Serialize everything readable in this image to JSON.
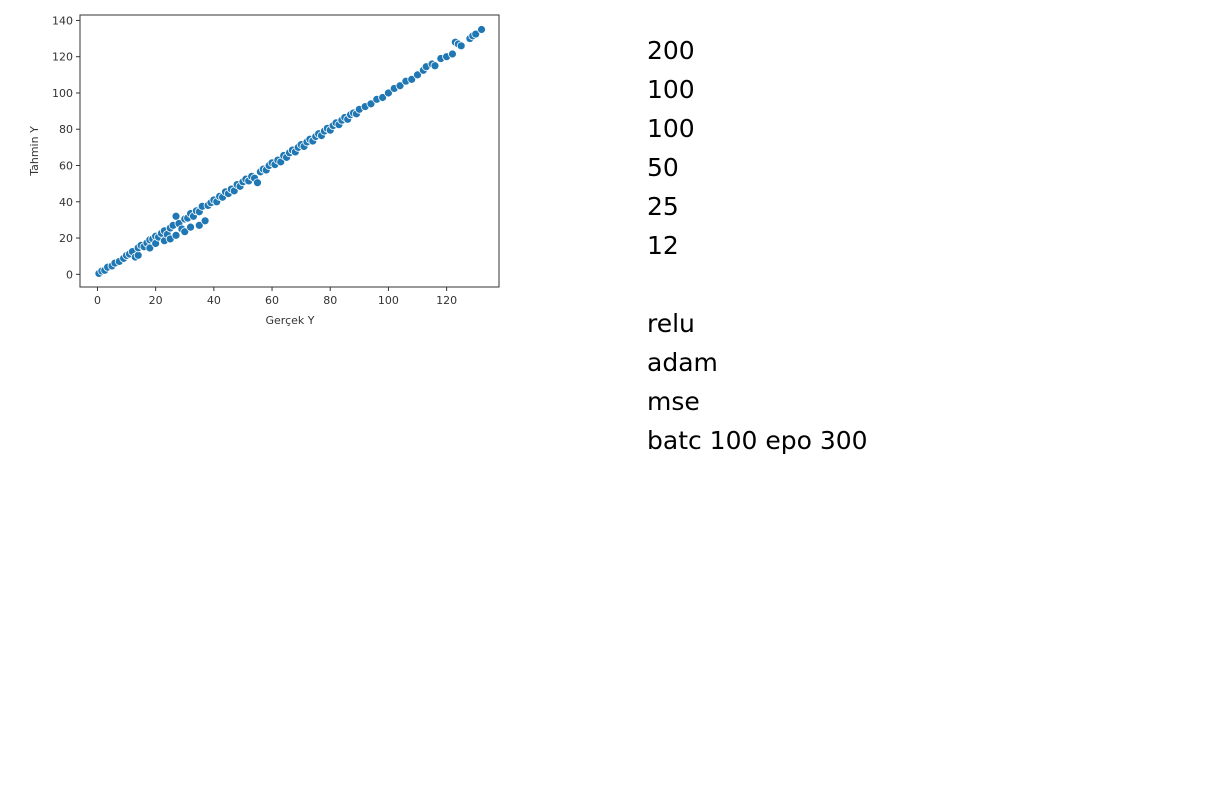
{
  "chart_data": {
    "type": "scatter",
    "title": "",
    "xlabel": "Gerçek Y",
    "ylabel": "Tahmin Y",
    "xlim": [
      -6,
      138
    ],
    "ylim": [
      -7,
      143
    ],
    "xticks": [
      0,
      20,
      40,
      60,
      80,
      100,
      120
    ],
    "yticks": [
      0,
      20,
      40,
      60,
      80,
      100,
      120,
      140
    ],
    "grid": false,
    "color": "#1f77b4",
    "edge_color": "#ffffff",
    "series": [
      {
        "values": [
          {
            "x": 0.5,
            "y": 0.5
          },
          {
            "x": 1.5,
            "y": 1.8
          },
          {
            "x": 2.5,
            "y": 2.2
          },
          {
            "x": 3.5,
            "y": 3.9
          },
          {
            "x": 5,
            "y": 4.6
          },
          {
            "x": 6,
            "y": 6.2
          },
          {
            "x": 7.5,
            "y": 7.1
          },
          {
            "x": 9,
            "y": 8.8
          },
          {
            "x": 10,
            "y": 10.4
          },
          {
            "x": 11,
            "y": 11.2
          },
          {
            "x": 12,
            "y": 12.5
          },
          {
            "x": 13,
            "y": 9.5
          },
          {
            "x": 14,
            "y": 10.5
          },
          {
            "x": 14,
            "y": 14.6
          },
          {
            "x": 15,
            "y": 16.0
          },
          {
            "x": 16,
            "y": 15.2
          },
          {
            "x": 17,
            "y": 17.3
          },
          {
            "x": 18,
            "y": 19.0
          },
          {
            "x": 18,
            "y": 14.5
          },
          {
            "x": 19,
            "y": 19.5
          },
          {
            "x": 20,
            "y": 21.0
          },
          {
            "x": 20,
            "y": 17.0
          },
          {
            "x": 21,
            "y": 20.5
          },
          {
            "x": 22,
            "y": 22.6
          },
          {
            "x": 23,
            "y": 18.5
          },
          {
            "x": 23,
            "y": 24.0
          },
          {
            "x": 24,
            "y": 22.0
          },
          {
            "x": 25,
            "y": 25.5
          },
          {
            "x": 25,
            "y": 19.5
          },
          {
            "x": 26,
            "y": 27.0
          },
          {
            "x": 27,
            "y": 32.0
          },
          {
            "x": 27,
            "y": 21.5
          },
          {
            "x": 28,
            "y": 28.0
          },
          {
            "x": 29,
            "y": 25.0
          },
          {
            "x": 30,
            "y": 30.5
          },
          {
            "x": 30,
            "y": 23.5
          },
          {
            "x": 31,
            "y": 31.0
          },
          {
            "x": 32,
            "y": 33.5
          },
          {
            "x": 32,
            "y": 26.0
          },
          {
            "x": 33,
            "y": 32.0
          },
          {
            "x": 34,
            "y": 35.0
          },
          {
            "x": 35,
            "y": 27.0
          },
          {
            "x": 35,
            "y": 34.5
          },
          {
            "x": 36,
            "y": 37.5
          },
          {
            "x": 37,
            "y": 29.5
          },
          {
            "x": 38,
            "y": 38.0
          },
          {
            "x": 39,
            "y": 39.5
          },
          {
            "x": 40,
            "y": 41.0
          },
          {
            "x": 41,
            "y": 40.0
          },
          {
            "x": 42,
            "y": 43.0
          },
          {
            "x": 43,
            "y": 42.5
          },
          {
            "x": 44,
            "y": 45.5
          },
          {
            "x": 45,
            "y": 44.5
          },
          {
            "x": 46,
            "y": 47.0
          },
          {
            "x": 47,
            "y": 46.0
          },
          {
            "x": 48,
            "y": 49.5
          },
          {
            "x": 49,
            "y": 48.5
          },
          {
            "x": 50,
            "y": 51.0
          },
          {
            "x": 51,
            "y": 52.5
          },
          {
            "x": 52,
            "y": 51.5
          },
          {
            "x": 53,
            "y": 54.0
          },
          {
            "x": 54,
            "y": 53.0
          },
          {
            "x": 55,
            "y": 50.5
          },
          {
            "x": 56,
            "y": 56.5
          },
          {
            "x": 57,
            "y": 58.0
          },
          {
            "x": 58,
            "y": 57.5
          },
          {
            "x": 59,
            "y": 60.0
          },
          {
            "x": 60,
            "y": 61.5
          },
          {
            "x": 61,
            "y": 60.5
          },
          {
            "x": 62,
            "y": 63.0
          },
          {
            "x": 63,
            "y": 62.0
          },
          {
            "x": 64,
            "y": 65.5
          },
          {
            "x": 65,
            "y": 64.5
          },
          {
            "x": 66,
            "y": 67.0
          },
          {
            "x": 67,
            "y": 68.5
          },
          {
            "x": 68,
            "y": 67.5
          },
          {
            "x": 69,
            "y": 70.0
          },
          {
            "x": 70,
            "y": 71.5
          },
          {
            "x": 71,
            "y": 70.5
          },
          {
            "x": 72,
            "y": 73.0
          },
          {
            "x": 73,
            "y": 74.5
          },
          {
            "x": 74,
            "y": 73.5
          },
          {
            "x": 75,
            "y": 76.0
          },
          {
            "x": 76,
            "y": 77.5
          },
          {
            "x": 77,
            "y": 76.5
          },
          {
            "x": 78,
            "y": 79.0
          },
          {
            "x": 79,
            "y": 80.5
          },
          {
            "x": 80,
            "y": 79.5
          },
          {
            "x": 81,
            "y": 82.0
          },
          {
            "x": 82,
            "y": 83.5
          },
          {
            "x": 83,
            "y": 82.5
          },
          {
            "x": 84,
            "y": 85.0
          },
          {
            "x": 85,
            "y": 86.5
          },
          {
            "x": 86,
            "y": 85.5
          },
          {
            "x": 87,
            "y": 88.0
          },
          {
            "x": 88,
            "y": 89.0
          },
          {
            "x": 89,
            "y": 88.5
          },
          {
            "x": 90,
            "y": 91.0
          },
          {
            "x": 92,
            "y": 92.5
          },
          {
            "x": 94,
            "y": 94.0
          },
          {
            "x": 96,
            "y": 96.5
          },
          {
            "x": 98,
            "y": 97.5
          },
          {
            "x": 100,
            "y": 100.0
          },
          {
            "x": 102,
            "y": 102.5
          },
          {
            "x": 104,
            "y": 104.0
          },
          {
            "x": 106,
            "y": 106.5
          },
          {
            "x": 108,
            "y": 107.5
          },
          {
            "x": 110,
            "y": 110.0
          },
          {
            "x": 112,
            "y": 112.5
          },
          {
            "x": 113,
            "y": 114.5
          },
          {
            "x": 115,
            "y": 116.0
          },
          {
            "x": 116,
            "y": 115.0
          },
          {
            "x": 118,
            "y": 119.0
          },
          {
            "x": 120,
            "y": 120.0
          },
          {
            "x": 122,
            "y": 121.5
          },
          {
            "x": 123,
            "y": 128.0
          },
          {
            "x": 124,
            "y": 127.0
          },
          {
            "x": 125,
            "y": 126.0
          },
          {
            "x": 128,
            "y": 130.0
          },
          {
            "x": 129,
            "y": 131.5
          },
          {
            "x": 130,
            "y": 132.5
          },
          {
            "x": 132,
            "y": 135.0
          }
        ]
      }
    ]
  },
  "notes": {
    "lines": [
      "200",
      "100",
      "100",
      "50",
      "25",
      "12",
      "",
      "relu",
      "adam",
      "mse",
      "batc 100 epo 300"
    ]
  }
}
